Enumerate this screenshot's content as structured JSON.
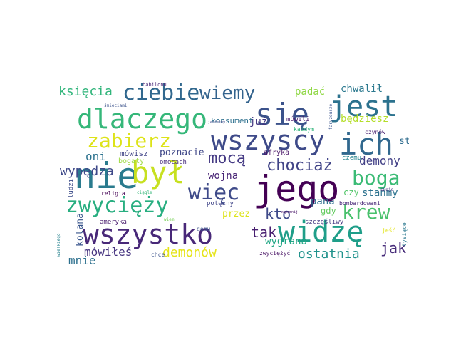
{
  "words": [
    {
      "id": "nie",
      "text": "nie",
      "color": "#2a7b8e"
    },
    {
      "id": "jego",
      "text": "jego",
      "color": "#440154"
    },
    {
      "id": "sie",
      "text": "się",
      "color": "#3b528b"
    },
    {
      "id": "jest",
      "text": "jest",
      "color": "#2c728e"
    },
    {
      "id": "ich",
      "text": "ich",
      "color": "#31688e"
    },
    {
      "id": "byl",
      "text": "był",
      "color": "#c7e020"
    },
    {
      "id": "dlaczego",
      "text": "dlaczego",
      "color": "#35b779"
    },
    {
      "id": "wszyscy",
      "text": "wszyscy",
      "color": "#3e4a89"
    },
    {
      "id": "wszystko",
      "text": "wszystko",
      "color": "#482878"
    },
    {
      "id": "widze",
      "text": "widzę",
      "color": "#1f9e89"
    },
    {
      "id": "zwyciezy",
      "text": "zwycięży",
      "color": "#28ae80"
    },
    {
      "id": "ciebie",
      "text": "ciebie",
      "color": "#31688e"
    },
    {
      "id": "wiec",
      "text": "więc",
      "color": "#3e4a89"
    },
    {
      "id": "zabierz",
      "text": "zabierz",
      "color": "#dde318"
    },
    {
      "id": "boga",
      "text": "boga",
      "color": "#3bbb75"
    },
    {
      "id": "krew",
      "text": "krew",
      "color": "#4ac16d"
    },
    {
      "id": "wiemy",
      "text": "wiemy",
      "color": "#33638d"
    },
    {
      "id": "moca",
      "text": "mocą",
      "color": "#443983"
    },
    {
      "id": "chociaz",
      "text": "chociaż",
      "color": "#414487"
    },
    {
      "id": "ksiecia",
      "text": "księcia",
      "color": "#31b57b"
    },
    {
      "id": "kto",
      "text": "kto",
      "color": "#3e4989"
    },
    {
      "id": "tak",
      "text": "tak",
      "color": "#481f70"
    },
    {
      "id": "jak",
      "text": "jak",
      "color": "#472c7a"
    },
    {
      "id": "demony",
      "text": "demony",
      "color": "#424086"
    },
    {
      "id": "oni",
      "text": "oni",
      "color": "#2c728e"
    },
    {
      "id": "wypedza",
      "text": "wypędza",
      "color": "#3e4989"
    },
    {
      "id": "demonow",
      "text": "demonów",
      "color": "#e5e419"
    },
    {
      "id": "ostatnia",
      "text": "ostatnia",
      "color": "#20928c"
    },
    {
      "id": "wygrana",
      "text": "wygrana",
      "color": "#22a785"
    },
    {
      "id": "mowiles",
      "text": "mówiłeś",
      "color": "#463480"
    },
    {
      "id": "mnie",
      "text": "mnie",
      "color": "#2d708e"
    },
    {
      "id": "wojna",
      "text": "wojna",
      "color": "#482475"
    },
    {
      "id": "padac",
      "text": "padać",
      "color": "#8fd744"
    },
    {
      "id": "chwalil",
      "text": "chwalił",
      "color": "#2a788e"
    },
    {
      "id": "juz",
      "text": "już",
      "color": "#453781"
    },
    {
      "id": "bedziesz",
      "text": "będziesz",
      "color": "#b5de2b"
    },
    {
      "id": "stracil",
      "text": "stracił",
      "color": "#2f6c8e"
    },
    {
      "id": "stanmy",
      "text": "stańmy",
      "color": "#2c728e"
    },
    {
      "id": "poznacie",
      "text": "poznacie",
      "color": "#3f4788"
    },
    {
      "id": "mowisz",
      "text": "mówisz",
      "color": "#414487"
    },
    {
      "id": "pana",
      "text": "pana",
      "color": "#2e6e8e"
    },
    {
      "id": "czy",
      "text": "czy",
      "color": "#52c569"
    },
    {
      "id": "gdy",
      "text": "gdy",
      "color": "#63cb5f"
    },
    {
      "id": "przez",
      "text": "przez",
      "color": "#dde318"
    },
    {
      "id": "konsument",
      "text": "konsument",
      "color": "#2d708e"
    },
    {
      "id": "afryka",
      "text": "afryka",
      "color": "#471365"
    },
    {
      "id": "bogaty",
      "text": "bogaty",
      "color": "#9bd93c"
    },
    {
      "id": "omocach",
      "text": "omocach",
      "color": "#472d7b"
    },
    {
      "id": "czemu",
      "text": "czemu",
      "color": "#25848e"
    },
    {
      "id": "czynow",
      "text": "czynów",
      "color": "#481f70"
    },
    {
      "id": "bombardowani",
      "text": "bombardowani",
      "color": "#482878"
    },
    {
      "id": "mowili",
      "text": "mówili",
      "color": "#481a6c"
    },
    {
      "id": "kazdym",
      "text": "każdym",
      "color": "#31b57b"
    },
    {
      "id": "potezny",
      "text": "potężny",
      "color": "#404588"
    },
    {
      "id": "religia",
      "text": "religia",
      "color": "#440154"
    },
    {
      "id": "ameryka",
      "text": "ameryka",
      "color": "#481b6d"
    },
    {
      "id": "domu",
      "text": "domu",
      "color": "#3b528b"
    },
    {
      "id": "szczesliwy",
      "text": "szczęśliwy",
      "color": "#453882"
    },
    {
      "id": "ludzi",
      "text": "ludzi",
      "color": "#3d4d8a"
    },
    {
      "id": "kolana",
      "text": "kolana",
      "color": "#39558c"
    },
    {
      "id": "chce",
      "text": "chce",
      "color": "#3b528b"
    },
    {
      "id": "zwyciezyc",
      "text": "zwyciężyć",
      "color": "#471063"
    },
    {
      "id": "tysiace",
      "text": "tysiące",
      "color": "#2a788e"
    },
    {
      "id": "jesc",
      "text": "jeść",
      "color": "#e2e418"
    },
    {
      "id": "babilonu",
      "text": "babilonu",
      "color": "#482475"
    },
    {
      "id": "smieciami",
      "text": "śmieciami",
      "color": "#3b528b"
    },
    {
      "id": "wielkiego",
      "text": "wielkiego",
      "color": "#26828e"
    },
    {
      "id": "wiem",
      "text": "wiem",
      "color": "#75d054"
    },
    {
      "id": "ciagle",
      "text": "ciągle",
      "color": "#35b779"
    },
    {
      "id": "swoje",
      "text": "swoje",
      "color": "#46337e"
    },
    {
      "id": "jestesmy",
      "text": "jesteśmy",
      "color": "#3e4989"
    },
    {
      "id": "faryzeusze",
      "text": "faryzeusze",
      "color": "#3a548c"
    },
    {
      "id": "zapomnij",
      "text": "zapomnij",
      "color": "#481467"
    }
  ]
}
